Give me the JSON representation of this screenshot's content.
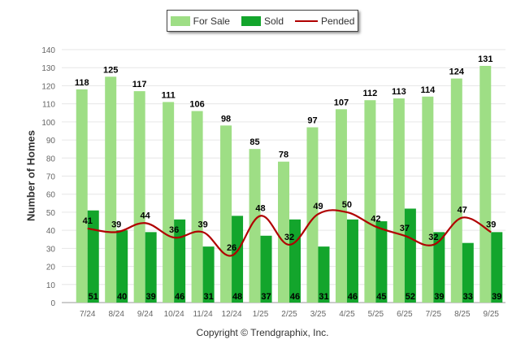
{
  "legend": {
    "for_sale": "For Sale",
    "sold": "Sold",
    "pended": "Pended"
  },
  "colors": {
    "for_sale": "#9ede85",
    "sold": "#13a52c",
    "pended": "#b00000",
    "grid": "#e6e6e6",
    "axis_text": "#666666",
    "label_text": "#000000"
  },
  "copyright": "Copyright © Trendgraphix, Inc.",
  "chart_data": {
    "type": "bar",
    "title": "",
    "xlabel": "",
    "ylabel": "Number of Homes",
    "ylim": [
      0,
      140
    ],
    "yticks": [
      0,
      10,
      20,
      30,
      40,
      50,
      60,
      70,
      80,
      90,
      100,
      110,
      120,
      130,
      140
    ],
    "grid": true,
    "legend_position": "top-center",
    "categories": [
      "7/24",
      "8/24",
      "9/24",
      "10/24",
      "11/24",
      "12/24",
      "1/25",
      "2/25",
      "3/25",
      "4/25",
      "5/25",
      "6/25",
      "7/25",
      "8/25",
      "9/25"
    ],
    "series": [
      {
        "name": "For Sale",
        "type": "bar",
        "values": [
          118,
          125,
          117,
          111,
          106,
          98,
          85,
          78,
          97,
          107,
          112,
          113,
          114,
          124,
          131
        ]
      },
      {
        "name": "Sold",
        "type": "bar",
        "values": [
          51,
          40,
          39,
          46,
          31,
          48,
          37,
          46,
          31,
          46,
          45,
          52,
          39,
          33,
          39
        ]
      },
      {
        "name": "Pended",
        "type": "line",
        "values": [
          41,
          39,
          44,
          36,
          39,
          26,
          48,
          32,
          49,
          50,
          42,
          37,
          32,
          47,
          39
        ]
      }
    ]
  }
}
